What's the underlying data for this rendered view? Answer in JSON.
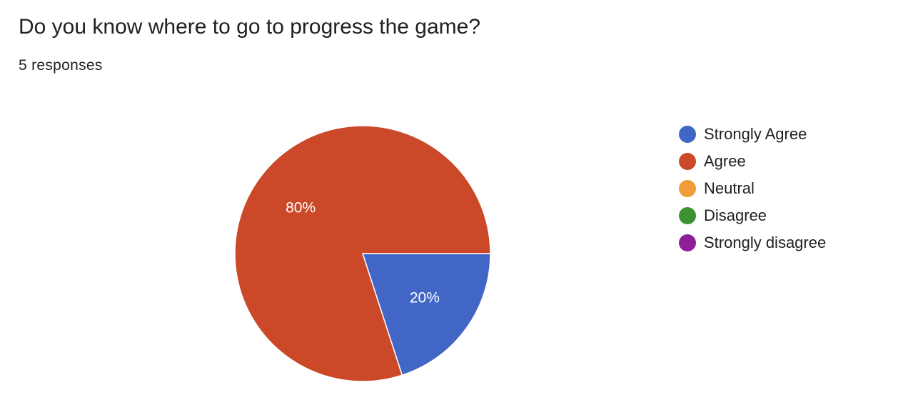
{
  "question": {
    "title": "Do you know where to go to progress the game?",
    "response_count": "5 responses"
  },
  "chart_data": {
    "type": "pie",
    "total_responses": 5,
    "categories": [
      "Strongly Agree",
      "Agree",
      "Neutral",
      "Disagree",
      "Strongly disagree"
    ],
    "values": [
      1,
      4,
      0,
      0,
      0
    ],
    "percent_labels": [
      "20%",
      "80%",
      "",
      "",
      ""
    ],
    "colors": [
      "#4166c6",
      "#cb4828",
      "#f09c37",
      "#3c9230",
      "#8e1e9a"
    ],
    "legend_position": "right",
    "start_direction": "right, clockwise"
  }
}
